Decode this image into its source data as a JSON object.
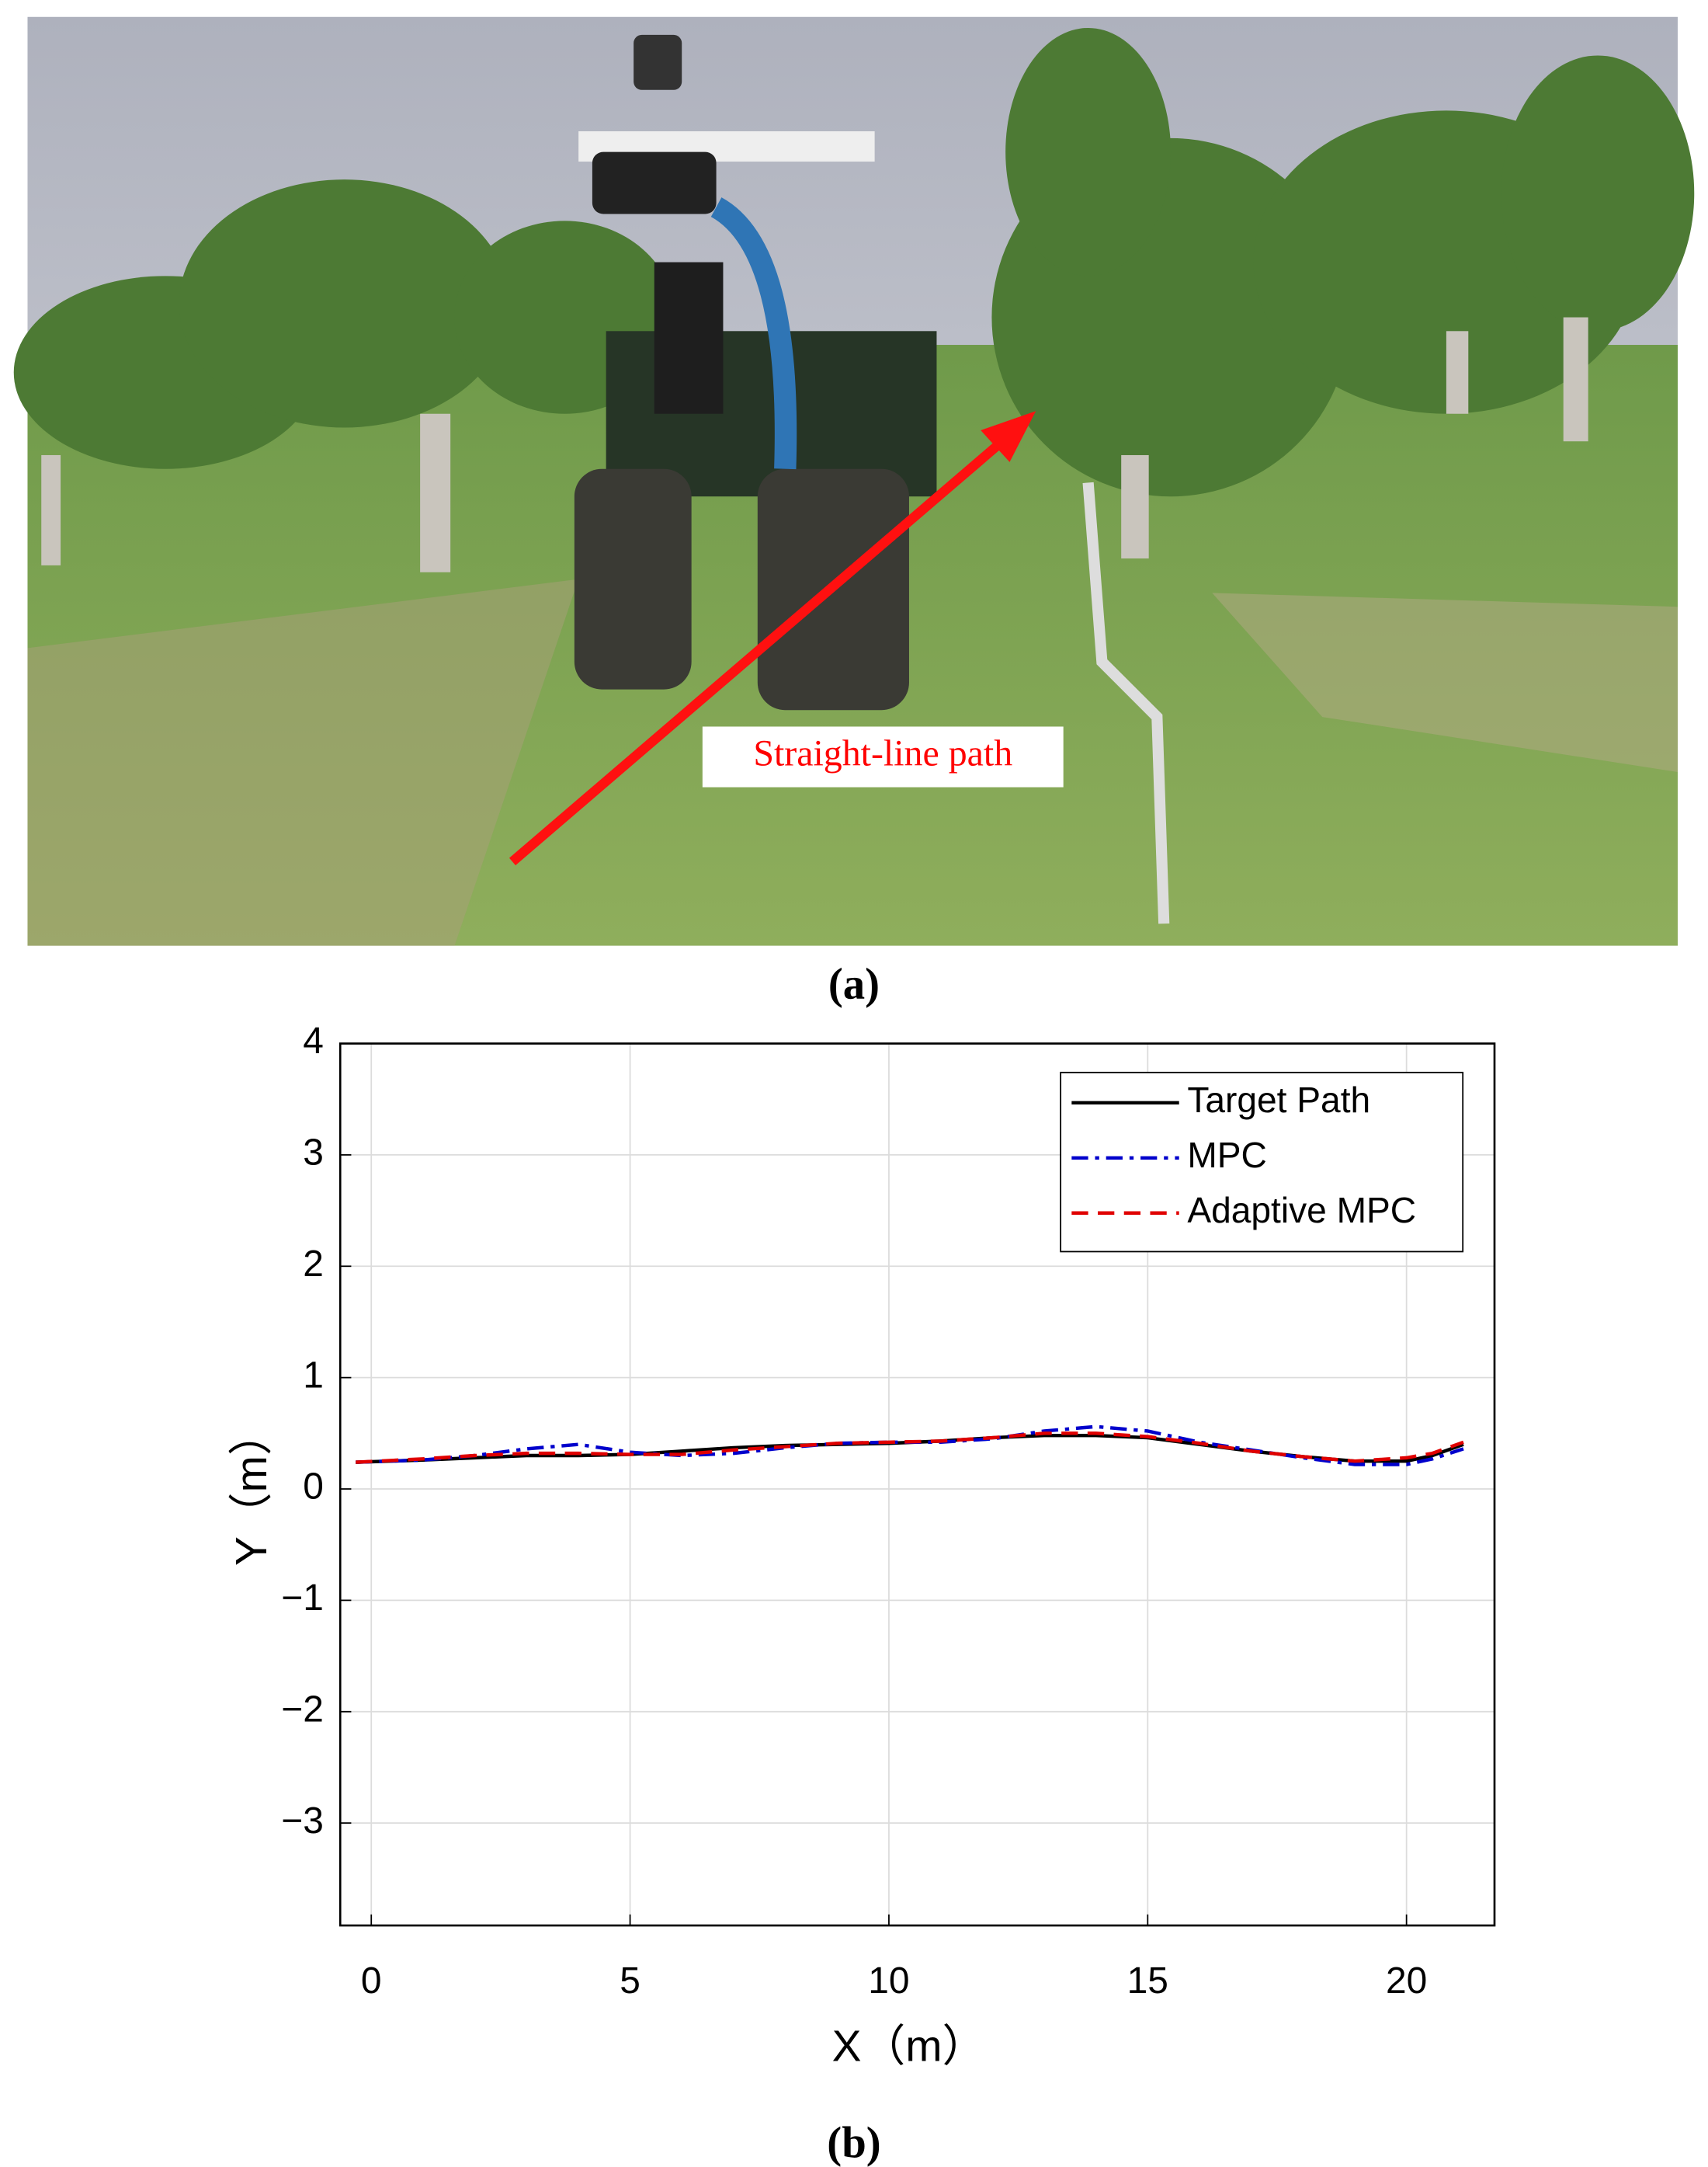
{
  "photo": {
    "annotation": "Straight-line path",
    "caption": "(a)"
  },
  "chart_data": {
    "type": "line",
    "caption": "(b)",
    "x_label": "X（m）",
    "y_label": "Y（m）",
    "x": [
      -0.3,
      1,
      2,
      3,
      4,
      5,
      6,
      7,
      8,
      9,
      10,
      11,
      12,
      13,
      14,
      15,
      16,
      17,
      18,
      19,
      20,
      20.5,
      21.1
    ],
    "series": [
      {
        "name": "Target Path",
        "color": "#000000",
        "line_style": "solid",
        "values": [
          0.24,
          0.26,
          0.28,
          0.3,
          0.3,
          0.31,
          0.34,
          0.37,
          0.39,
          0.4,
          0.41,
          0.43,
          0.46,
          0.48,
          0.48,
          0.46,
          0.4,
          0.34,
          0.29,
          0.25,
          0.25,
          0.3,
          0.4
        ]
      },
      {
        "name": "MPC",
        "color": "#0000cc",
        "line_style": "dashdot",
        "values": [
          0.24,
          0.26,
          0.3,
          0.36,
          0.4,
          0.33,
          0.3,
          0.32,
          0.37,
          0.41,
          0.42,
          0.42,
          0.45,
          0.52,
          0.56,
          0.52,
          0.42,
          0.35,
          0.28,
          0.22,
          0.22,
          0.27,
          0.36
        ]
      },
      {
        "name": "Adaptive MPC",
        "color": "#e00000",
        "line_style": "dashed",
        "values": [
          0.24,
          0.27,
          0.3,
          0.32,
          0.32,
          0.31,
          0.31,
          0.35,
          0.38,
          0.41,
          0.42,
          0.43,
          0.46,
          0.5,
          0.5,
          0.47,
          0.41,
          0.34,
          0.29,
          0.25,
          0.28,
          0.32,
          0.42
        ]
      }
    ],
    "xlim": [
      -0.6,
      21.7
    ],
    "xticks": [
      0,
      5,
      10,
      15,
      20
    ],
    "ylim": [
      -3.92,
      4
    ],
    "yticks": [
      {
        "value": -3,
        "label": "−3"
      },
      {
        "value": -2,
        "label": "−2"
      },
      {
        "value": -1,
        "label": "−1"
      },
      0,
      1,
      2,
      3,
      4
    ],
    "grid": true,
    "legend": "northeast"
  }
}
